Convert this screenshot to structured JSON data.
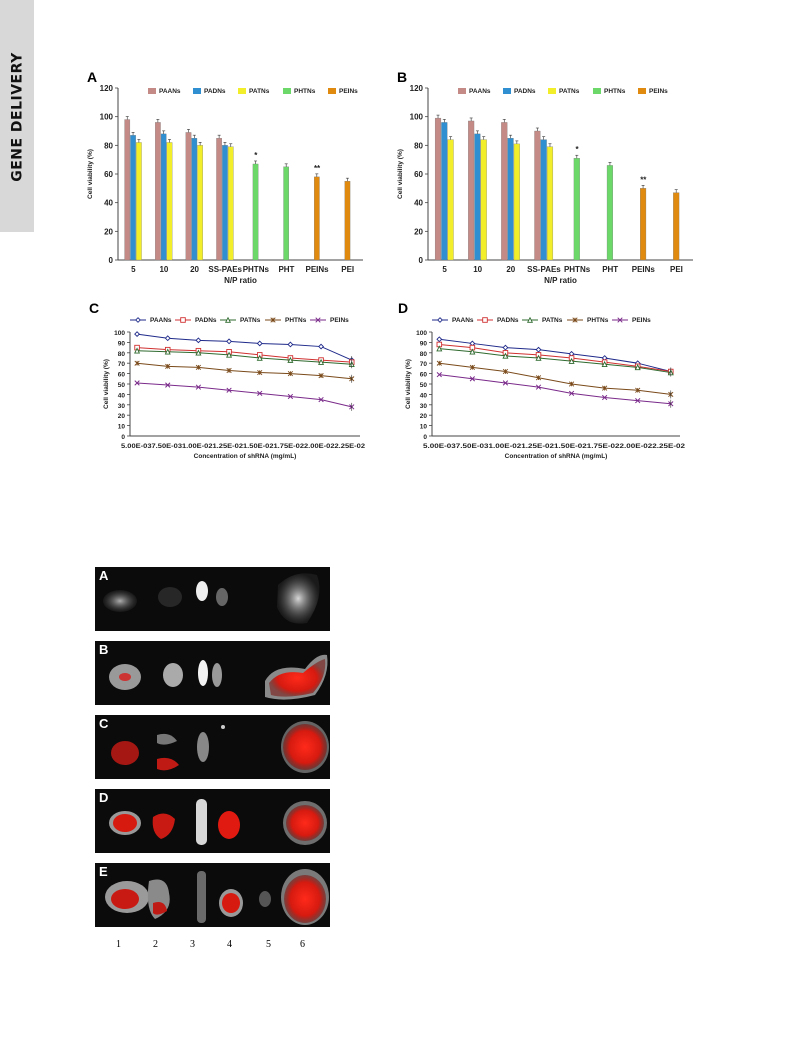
{
  "side_tab": {
    "label": "GENE DELIVERY"
  },
  "chart_data": [
    {
      "type": "bar",
      "panel_label": "A",
      "categories": [
        "5",
        "10",
        "20",
        "SS-PAEs",
        "PHTNs",
        "PHT",
        "PEINs",
        "PEI"
      ],
      "legend": [
        "PAANs",
        "PADNs",
        "PATNs",
        "PHTNs",
        "PEINs"
      ],
      "series": [
        {
          "name": "PAANs",
          "color": "#c48a86",
          "values": [
            98,
            96,
            89,
            85,
            null,
            null,
            null,
            null
          ]
        },
        {
          "name": "PADNs",
          "color": "#2f8fd0",
          "values": [
            87,
            88,
            85,
            80,
            null,
            null,
            null,
            null
          ]
        },
        {
          "name": "PATNs",
          "color": "#f2ee2a",
          "values": [
            82,
            82,
            80,
            79,
            null,
            null,
            null,
            null
          ]
        },
        {
          "name": "PHTNs",
          "color": "#6cd86a",
          "values": [
            null,
            null,
            null,
            null,
            67,
            65,
            null,
            null
          ]
        },
        {
          "name": "PEINs",
          "color": "#e08a10",
          "values": [
            null,
            null,
            null,
            null,
            null,
            null,
            58,
            55
          ]
        }
      ],
      "annotations": [
        {
          "category": "PHTNs",
          "text": "*"
        },
        {
          "category": "PEINs",
          "text": "**"
        }
      ],
      "xlabel": "N/P ratio",
      "ylabel": "Cell viability (%)",
      "ylim": [
        0,
        120
      ],
      "yticks": [
        0,
        20,
        40,
        60,
        80,
        100,
        120
      ],
      "legend_position": "top"
    },
    {
      "type": "bar",
      "panel_label": "B",
      "categories": [
        "5",
        "10",
        "20",
        "SS-PAEs",
        "PHTNs",
        "PHT",
        "PEINs",
        "PEI"
      ],
      "legend": [
        "PAANs",
        "PADNs",
        "PATNs",
        "PHTNs",
        "PEINs"
      ],
      "series": [
        {
          "name": "PAANs",
          "color": "#c48a86",
          "values": [
            99,
            97,
            96,
            90,
            null,
            null,
            null,
            null
          ]
        },
        {
          "name": "PADNs",
          "color": "#2f8fd0",
          "values": [
            96,
            88,
            85,
            84,
            null,
            null,
            null,
            null
          ]
        },
        {
          "name": "PATNs",
          "color": "#f2ee2a",
          "values": [
            84,
            84,
            81,
            79,
            null,
            null,
            null,
            null
          ]
        },
        {
          "name": "PHTNs",
          "color": "#6cd86a",
          "values": [
            null,
            null,
            null,
            null,
            71,
            66,
            null,
            null
          ]
        },
        {
          "name": "PEINs",
          "color": "#e08a10",
          "values": [
            null,
            null,
            null,
            null,
            null,
            null,
            50,
            47
          ]
        }
      ],
      "annotations": [
        {
          "category": "PHTNs",
          "text": "*"
        },
        {
          "category": "PEINs",
          "text": "**"
        }
      ],
      "xlabel": "N/P ratio",
      "ylabel": "Cell viability (%)",
      "ylim": [
        0,
        120
      ],
      "yticks": [
        0,
        20,
        40,
        60,
        80,
        100,
        120
      ],
      "legend_position": "top"
    },
    {
      "type": "line",
      "panel_label": "C",
      "x": [
        "5.00E-03",
        "7.50E-03",
        "1.00E-02",
        "1.25E-02",
        "1.50E-02",
        "1.75E-02",
        "2.00E-02",
        "2.25E-02"
      ],
      "xtick_text": "5.00E-037.50E-031.00E-021.25E-021.50E-021.75E-022.00E-022.25E-02",
      "series": [
        {
          "name": "PAANs",
          "color": "#1f2a8a",
          "marker": "diamond",
          "values": [
            98,
            94,
            92,
            91,
            89,
            88,
            86,
            73
          ]
        },
        {
          "name": "PADNs",
          "color": "#d03030",
          "marker": "square",
          "values": [
            85,
            83,
            82,
            81,
            78,
            75,
            73,
            71
          ]
        },
        {
          "name": "PATNs",
          "color": "#2f6a2f",
          "marker": "triangle",
          "values": [
            82,
            81,
            80,
            78,
            75,
            73,
            71,
            69
          ]
        },
        {
          "name": "PHTNs",
          "color": "#7a4a1a",
          "marker": "star",
          "values": [
            70,
            67,
            66,
            63,
            61,
            60,
            58,
            55
          ]
        },
        {
          "name": "PEINs",
          "color": "#7a2a8a",
          "marker": "x",
          "values": [
            51,
            49,
            47,
            44,
            41,
            38,
            35,
            28
          ]
        }
      ],
      "xlabel": "Concentration of shRNA (mg/mL)",
      "ylabel": "Cell viability (%)",
      "ylim": [
        0,
        100
      ],
      "yticks": [
        0,
        10,
        20,
        30,
        40,
        50,
        60,
        70,
        80,
        90,
        100
      ],
      "legend_position": "top"
    },
    {
      "type": "line",
      "panel_label": "D",
      "x": [
        "5.00E-03",
        "7.50E-03",
        "1.00E-02",
        "1.25E-02",
        "1.50E-02",
        "1.75E-02",
        "2.00E-02",
        "2.25E-02"
      ],
      "xtick_text": "5.00E-037.50E-031.00E-021.25E-021.50E-021.75E-022.00E-022.25E-02",
      "series": [
        {
          "name": "PAANs",
          "color": "#1f2a8a",
          "marker": "diamond",
          "values": [
            93,
            89,
            85,
            83,
            79,
            75,
            70,
            62
          ]
        },
        {
          "name": "PADNs",
          "color": "#d03030",
          "marker": "square",
          "values": [
            88,
            85,
            80,
            78,
            75,
            71,
            67,
            62
          ]
        },
        {
          "name": "PATNs",
          "color": "#2f6a2f",
          "marker": "triangle",
          "values": [
            84,
            81,
            77,
            75,
            72,
            69,
            66,
            61
          ]
        },
        {
          "name": "PHTNs",
          "color": "#7a4a1a",
          "marker": "star",
          "values": [
            70,
            66,
            62,
            56,
            50,
            46,
            44,
            40
          ]
        },
        {
          "name": "PEINs",
          "color": "#7a2a8a",
          "marker": "x",
          "values": [
            59,
            55,
            51,
            47,
            41,
            37,
            34,
            31
          ]
        }
      ],
      "xlabel": "Concentration of shRNA (mg/mL)",
      "ylabel": "Cell viability (%)",
      "ylim": [
        0,
        100
      ],
      "yticks": [
        0,
        10,
        20,
        30,
        40,
        50,
        60,
        70,
        80,
        90,
        100
      ],
      "legend_position": "top"
    }
  ],
  "image_figure": {
    "panels": [
      "A",
      "B",
      "C",
      "D",
      "E"
    ],
    "lane_labels": [
      "1",
      "2",
      "3",
      "4",
      "5",
      "6"
    ]
  }
}
